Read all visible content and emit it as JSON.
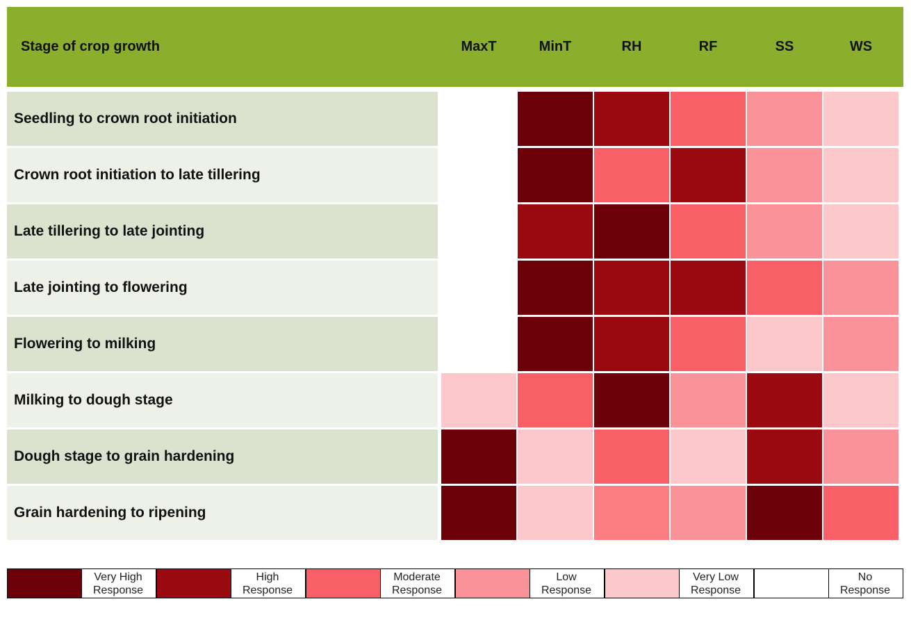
{
  "table": {
    "header": [
      "Stage of crop growth",
      "MaxT",
      "MinT",
      "RH",
      "RF",
      "SS",
      "WS"
    ],
    "rows": [
      {
        "label": "Seedling to crown root initiation",
        "cells": [
          "#ffffff",
          "#6b0009",
          "#9a0a10",
          "#f85f66",
          "#f99399",
          "#fcc8cc"
        ]
      },
      {
        "label": "Crown root initiation to late tillering",
        "cells": [
          "#ffffff",
          "#6b0009",
          "#f85f66",
          "#9a0a10",
          "#f99399",
          "#fcc8cc"
        ]
      },
      {
        "label": "Late tillering to late jointing",
        "cells": [
          "#ffffff",
          "#9a0a10",
          "#6b0009",
          "#f85f66",
          "#f99399",
          "#fcc8cc"
        ]
      },
      {
        "label": "Late jointing to flowering",
        "cells": [
          "#ffffff",
          "#6b0009",
          "#9a0a10",
          "#9a0a10",
          "#f85f66",
          "#f99399"
        ]
      },
      {
        "label": "Flowering to milking",
        "cells": [
          "#ffffff",
          "#6b0009",
          "#9a0a10",
          "#f85f66",
          "#fcc8cc",
          "#f99399"
        ]
      },
      {
        "label": "Milking to dough stage",
        "cells": [
          "#fcc8cc",
          "#f85f66",
          "#6b0009",
          "#f99399",
          "#9a0a10",
          "#fcc8cc"
        ]
      },
      {
        "label": "Dough stage to grain hardening",
        "cells": [
          "#6b0009",
          "#fcc8cc",
          "#f85f66",
          "#fcc8cc",
          "#9a0a10",
          "#f99399"
        ]
      },
      {
        "label": "Grain hardening to ripening",
        "cells": [
          "#6b0009",
          "#fcc8cc",
          "#fb7d82",
          "#f99399",
          "#6b0009",
          "#f85f66"
        ]
      }
    ]
  },
  "legend": [
    {
      "color": "#6b0009",
      "label": [
        "Very High",
        "Response"
      ]
    },
    {
      "color": "#9a0a10",
      "label": [
        "High",
        "Response"
      ]
    },
    {
      "color": "#f85f66",
      "label": [
        "Moderate",
        "Response"
      ]
    },
    {
      "color": "#f99399",
      "label": [
        "Low",
        "Response"
      ]
    },
    {
      "color": "#fcc8cc",
      "label": [
        "Very Low",
        "Response"
      ]
    },
    {
      "color": "#ffffff",
      "label": [
        "No",
        "Response"
      ]
    }
  ]
}
